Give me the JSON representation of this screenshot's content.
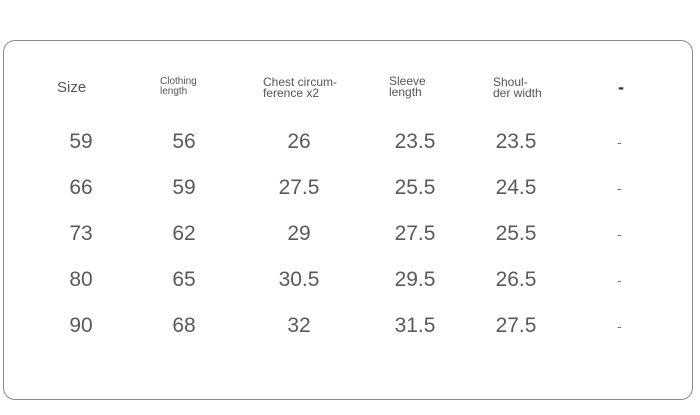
{
  "table": {
    "headers": [
      {
        "line1": "Size",
        "line2": ""
      },
      {
        "line1": "Clothing",
        "line2": "length"
      },
      {
        "line1": "Chest circum-",
        "line2": "ference x2"
      },
      {
        "line1": "Sleeve",
        "line2": "length"
      },
      {
        "line1": "Shoul-",
        "line2": "der width"
      },
      {
        "line1": "-",
        "line2": ""
      }
    ],
    "rows": [
      [
        "59",
        "56",
        "26",
        "23.5",
        "23.5",
        "-"
      ],
      [
        "66",
        "59",
        "27.5",
        "25.5",
        "24.5",
        "-"
      ],
      [
        "73",
        "62",
        "29",
        "27.5",
        "25.5",
        "-"
      ],
      [
        "80",
        "65",
        "30.5",
        "29.5",
        "26.5",
        "-"
      ],
      [
        "90",
        "68",
        "32",
        "31.5",
        "27.5",
        "-"
      ]
    ]
  }
}
